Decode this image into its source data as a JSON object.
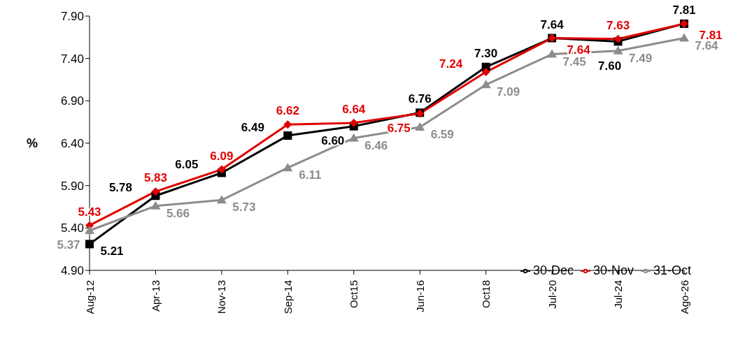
{
  "chart_data": {
    "type": "line",
    "ylabel": "%",
    "categories": [
      "Aug-12",
      "Apr-13",
      "Nov-13",
      "Sep-14",
      "Oct15",
      "Jun-16",
      "Oct18",
      "Jul-20",
      "Jul-24",
      "Ago-26"
    ],
    "series": [
      {
        "name": "30-Dec",
        "color": "#000000",
        "marker": "square",
        "values": [
          5.21,
          5.78,
          6.05,
          6.49,
          6.6,
          6.76,
          7.3,
          7.64,
          7.6,
          7.81
        ],
        "value_labels": [
          "5.21",
          "5.78",
          "6.05",
          "6.49",
          "6.60",
          "6.76",
          "7.30",
          "7.64",
          "7.60",
          "7.81"
        ]
      },
      {
        "name": "30-Nov",
        "color": "#e00000",
        "marker": "diamond",
        "values": [
          5.43,
          5.83,
          6.09,
          6.62,
          6.64,
          6.75,
          7.24,
          7.64,
          7.63,
          7.81
        ],
        "value_labels": [
          "5.43",
          "5.83",
          "6.09",
          "6.62",
          "6.64",
          "6.75",
          "7.24",
          "7.64",
          "7.63",
          "7.81"
        ]
      },
      {
        "name": "31-Oct",
        "color": "#8c8c8c",
        "marker": "triangle",
        "values": [
          5.37,
          5.66,
          5.73,
          6.11,
          6.46,
          6.59,
          7.09,
          7.45,
          7.49,
          7.64
        ],
        "value_labels": [
          "5.37",
          "5.66",
          "5.73",
          "6.11",
          "6.46",
          "6.59",
          "7.09",
          "7.45",
          "7.49",
          "7.64"
        ]
      }
    ],
    "ylim": [
      4.9,
      7.9
    ],
    "yticks": [
      {
        "value": 4.9,
        "label": "4.90"
      },
      {
        "value": 5.4,
        "label": "5.40"
      },
      {
        "value": 5.9,
        "label": "5.90"
      },
      {
        "value": 6.4,
        "label": "6.40"
      },
      {
        "value": 6.9,
        "label": "6.90"
      },
      {
        "value": 7.4,
        "label": "7.40"
      },
      {
        "value": 7.9,
        "label": "7.90"
      }
    ],
    "grid": false,
    "legend": "bottom right",
    "data_labels": true,
    "line_style": "solid"
  }
}
